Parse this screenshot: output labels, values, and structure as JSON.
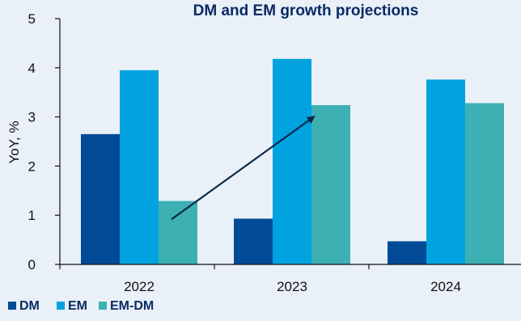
{
  "chart_data": {
    "type": "bar",
    "title": "DM and EM growth projections",
    "ylabel": "YoY, %",
    "xlabel": "",
    "categories": [
      "2022",
      "2023",
      "2024"
    ],
    "ylim": [
      0,
      5
    ],
    "yticks": [
      "0",
      "1",
      "2",
      "3",
      "4",
      "5"
    ],
    "series": [
      {
        "name": "DM",
        "values": [
          2.65,
          0.93,
          0.47
        ],
        "color": "#004a98"
      },
      {
        "name": "EM",
        "values": [
          3.95,
          4.18,
          3.76
        ],
        "color": "#00a3e0"
      },
      {
        "name": "EM-DM",
        "values": [
          1.29,
          3.24,
          3.28
        ],
        "color": "#3db0b4"
      }
    ],
    "annotation": {
      "type": "arrow",
      "from": {
        "category": "2022",
        "value": 1.0
      },
      "to": {
        "category": "2023",
        "value": 3.2
      },
      "color": "#0a2a4a"
    },
    "legend": {
      "position": "bottom-left"
    },
    "grid": false
  }
}
